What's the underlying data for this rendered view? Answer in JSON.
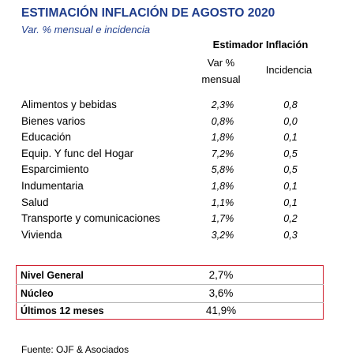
{
  "header": {
    "title": "ESTIMACIÓN INFLACIÓN DE AGOSTO 2020",
    "subtitle": "Var. % mensual e incidencia"
  },
  "table": {
    "group_header": "Estimador Inflación",
    "columns": [
      "Var % mensual",
      "Incidencia"
    ],
    "rows": [
      [
        "Alimentos y bebidas",
        "2,3%",
        "0,8"
      ],
      [
        "Bienes varios",
        "0,8%",
        "0,0"
      ],
      [
        "Educación",
        "1,8%",
        "0,1"
      ],
      [
        "Equip. Y func del Hogar",
        "7,2%",
        "0,5"
      ],
      [
        "Esparcimiento",
        "5,8%",
        "0,5"
      ],
      [
        "Indumentaria",
        "1,8%",
        "0,1"
      ],
      [
        "Salud",
        "1,1%",
        "0,1"
      ],
      [
        "Transporte y comunicaciones",
        "1,7%",
        "0,2"
      ],
      [
        "Vivienda",
        "3,2%",
        "0,3"
      ]
    ]
  },
  "summary": {
    "rows": [
      [
        "Nivel General",
        "2,7%"
      ],
      [
        "Núcleo",
        "3,6%"
      ],
      [
        "Últimos 12 meses",
        "41,9%"
      ]
    ]
  },
  "source": "Fuente: OJF & Asociados"
}
